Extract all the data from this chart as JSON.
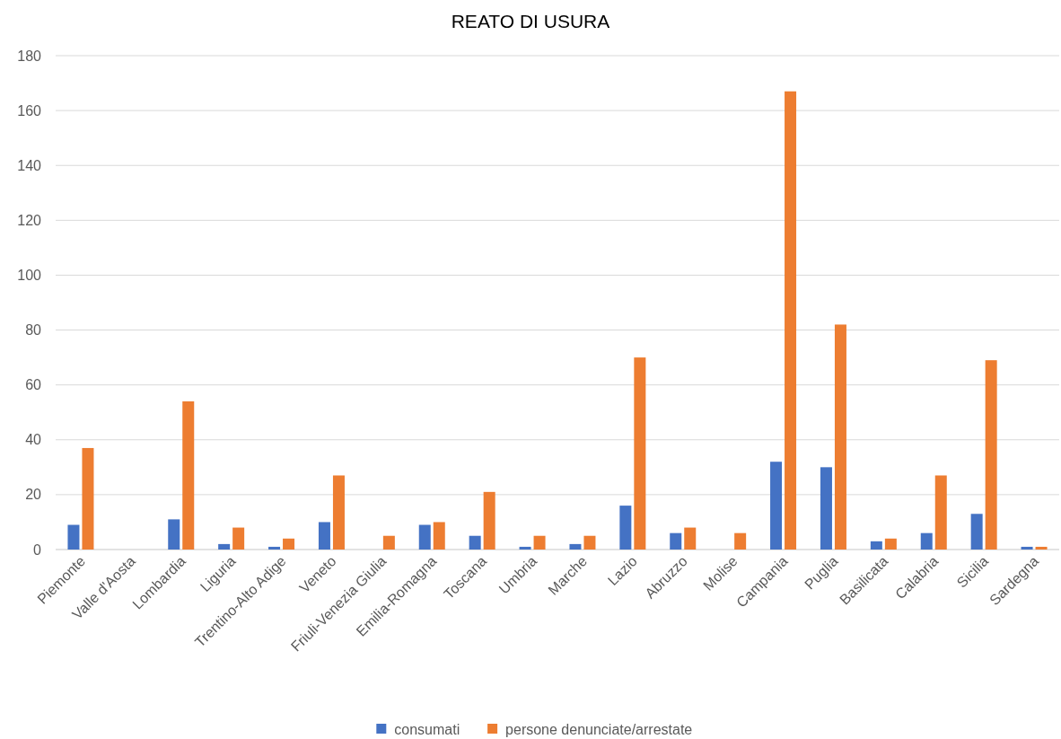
{
  "chart_data": {
    "type": "bar",
    "title": "REATO DI USURA",
    "categories": [
      "Piemonte",
      "Valle d'Aosta",
      "Lombardia",
      "Liguria",
      "Trentino-Alto Adige",
      "Veneto",
      "Friuli-Venezia Giulia",
      "Emilia-Romagna",
      "Toscana",
      "Umbria",
      "Marche",
      "Lazio",
      "Abruzzo",
      "Molise",
      "Campania",
      "Puglia",
      "Basilicata",
      "Calabria",
      "Sicilia",
      "Sardegna"
    ],
    "series": [
      {
        "name": "consumati",
        "color": "#4472c4",
        "values": [
          9,
          0,
          11,
          2,
          1,
          10,
          0,
          9,
          5,
          1,
          2,
          16,
          6,
          0,
          32,
          30,
          3,
          6,
          13,
          1
        ]
      },
      {
        "name": "persone denunciate/arrestate",
        "color": "#ed7d31",
        "values": [
          37,
          0,
          54,
          8,
          4,
          27,
          5,
          10,
          21,
          5,
          5,
          70,
          8,
          6,
          167,
          82,
          4,
          27,
          69,
          1
        ]
      }
    ],
    "ylim": [
      0,
      180
    ],
    "yticks": [
      0,
      20,
      40,
      60,
      80,
      100,
      120,
      140,
      160,
      180
    ],
    "grid": "y",
    "legend": "bottom"
  }
}
